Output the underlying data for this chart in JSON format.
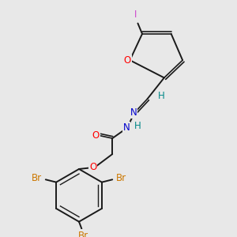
{
  "bg_color": "#e8e8e8",
  "bond_color": "#1a1a1a",
  "colors": {
    "O": "#ff0000",
    "N": "#0000cc",
    "Br": "#cc7700",
    "I": "#cc44cc",
    "H": "#008888",
    "C": "#1a1a1a"
  },
  "fs": 8.5
}
